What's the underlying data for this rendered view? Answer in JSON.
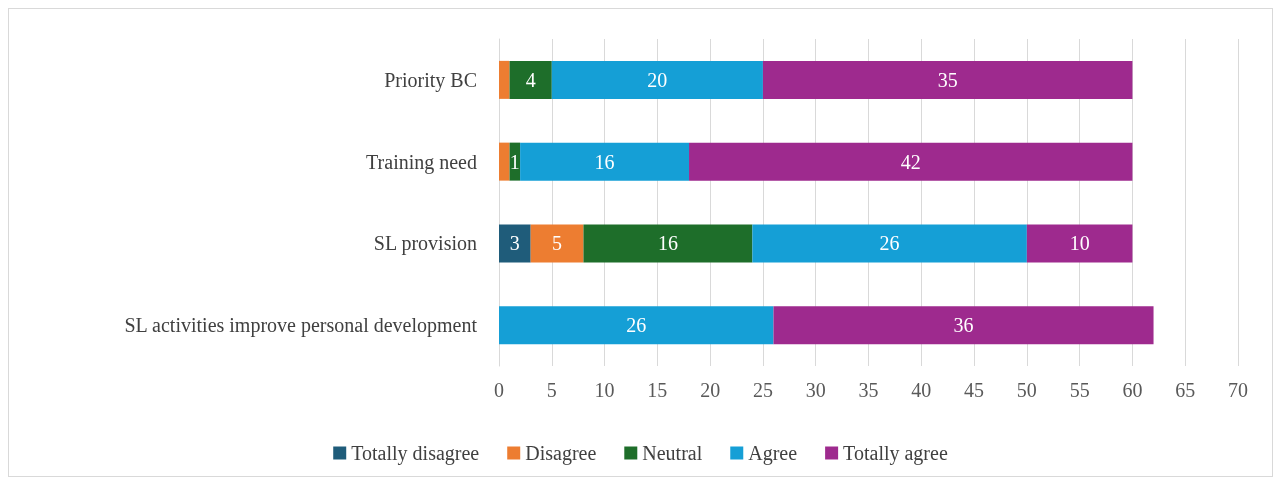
{
  "chart_data": {
    "type": "bar",
    "orientation": "horizontal",
    "stacked": true,
    "categories": [
      "Priority BC",
      "Training need",
      "SL provision",
      "SL activities improve personal development"
    ],
    "series": [
      {
        "name": "Totally disagree",
        "color": "#1f5c7a",
        "values": [
          null,
          null,
          3,
          null
        ],
        "value_labels": [
          null,
          null,
          "3",
          null
        ]
      },
      {
        "name": "Disagree",
        "color": "#ed7d31",
        "values": [
          1,
          1,
          5,
          null
        ],
        "value_labels": [
          null,
          null,
          "5",
          null
        ]
      },
      {
        "name": "Neutral",
        "color": "#1e6e2a",
        "values": [
          4,
          1,
          16,
          null
        ],
        "value_labels": [
          "4",
          "1",
          "16",
          null
        ]
      },
      {
        "name": "Agree",
        "color": "#159fd6",
        "values": [
          20,
          16,
          26,
          26
        ],
        "value_labels": [
          "20",
          "16",
          "26",
          "26"
        ]
      },
      {
        "name": "Totally agree",
        "color": "#9e2a8e",
        "values": [
          35,
          42,
          10,
          36
        ],
        "value_labels": [
          "35",
          "42",
          "10",
          "36"
        ]
      }
    ],
    "xlim": [
      0,
      70
    ],
    "xticks": [
      0,
      5,
      10,
      15,
      20,
      25,
      30,
      35,
      40,
      45,
      50,
      55,
      60,
      65,
      70
    ],
    "grid": "x",
    "legend": "bottom"
  }
}
